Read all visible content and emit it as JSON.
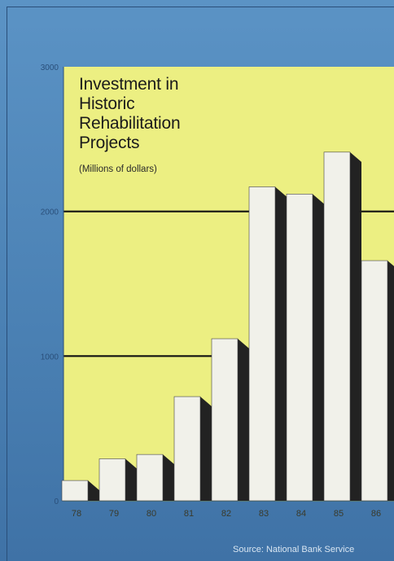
{
  "chart_data": {
    "type": "bar",
    "title": "Investment in\nHistoric\nRehabilitation\nProjects",
    "subtitle": "(Millions of dollars)",
    "categories": [
      "78",
      "79",
      "80",
      "81",
      "82",
      "83",
      "84",
      "85",
      "86"
    ],
    "values": [
      140,
      290,
      320,
      720,
      1120,
      2170,
      2120,
      2410,
      1660
    ],
    "ylim": [
      0,
      3000
    ],
    "yticks": [
      0,
      1000,
      2000,
      3000
    ],
    "ytick_labels": [
      "0",
      "1000",
      "2000",
      "3000"
    ],
    "gridlines": [
      1000,
      2000
    ],
    "source": "Source: National Bank Service",
    "colors": {
      "plot_background": "#ecef82",
      "frame": "#4f86b8",
      "bar_face": "#f1f1ea",
      "bar_shadow": "#222222",
      "gridline": "#111111",
      "axis_text": "#2a4f7a"
    }
  }
}
